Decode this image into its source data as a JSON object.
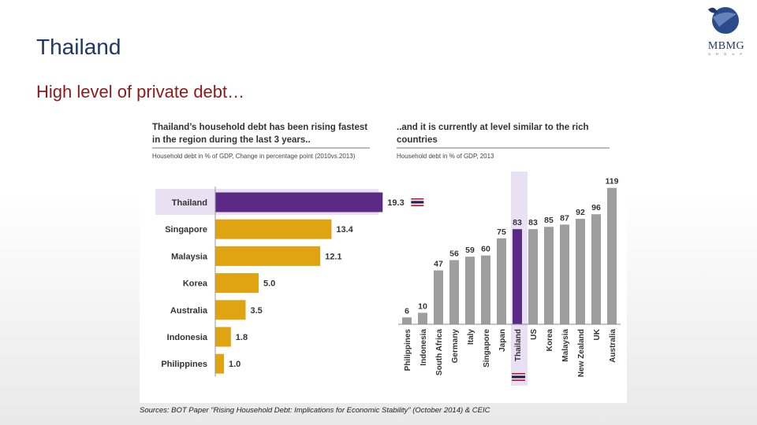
{
  "slide": {
    "title": "Thailand",
    "subtitle": "High level of private debt…",
    "logo_text": "MBMG",
    "logo_subtext": "G R O U P",
    "sources": "Sources: BOT Paper \"Rising Household Debt: Implications for Economic Stability\" (October 2014) & CEIC"
  },
  "colors": {
    "title": "#1f3864",
    "subtitle": "#8b1a1a",
    "highlight_bar": "#5b2a86",
    "gold_bar": "#e0a311",
    "gray_bar": "#9e9e9e",
    "highlight_band": "#e9e1f3"
  },
  "chart_data": [
    {
      "type": "bar",
      "orientation": "horizontal",
      "title": "Thailand’s household debt has been rising fastest in the region during the last 3 years..",
      "subtitle": "Household debt in % of GDP, Change in percentage point (2010vs.2013)",
      "categories": [
        "Thailand",
        "Singapore",
        "Malaysia",
        "Korea",
        "Australia",
        "Indonesia",
        "Philippines"
      ],
      "values": [
        19.3,
        13.4,
        12.1,
        5.0,
        3.5,
        1.8,
        1.0
      ],
      "value_labels": [
        "19.3",
        "13.4",
        "12.1",
        "5.0",
        "3.5",
        "1.8",
        "1.0"
      ],
      "highlight": "Thailand",
      "xlim": [
        0,
        20
      ],
      "legend": "none"
    },
    {
      "type": "bar",
      "orientation": "vertical",
      "title": "..and it is currently at level similar to the rich countries",
      "subtitle": "Household debt in % of GDP, 2013",
      "categories": [
        "Philippines",
        "Indonesia",
        "South Africa",
        "Germany",
        "Italy",
        "Singapore",
        "Japan",
        "Thailand",
        "US",
        "Korea",
        "Malaysia",
        "New Zealand",
        "UK",
        "Australia"
      ],
      "values": [
        6,
        10,
        47,
        56,
        59,
        60,
        75,
        83,
        83,
        85,
        87,
        92,
        96,
        119
      ],
      "value_labels": [
        "6",
        "10",
        "47",
        "56",
        "59",
        "60",
        "75",
        "83",
        "83",
        "85",
        "87",
        "92",
        "96",
        "119"
      ],
      "highlight": "Thailand",
      "ylim": [
        0,
        125
      ],
      "legend": "none"
    }
  ]
}
